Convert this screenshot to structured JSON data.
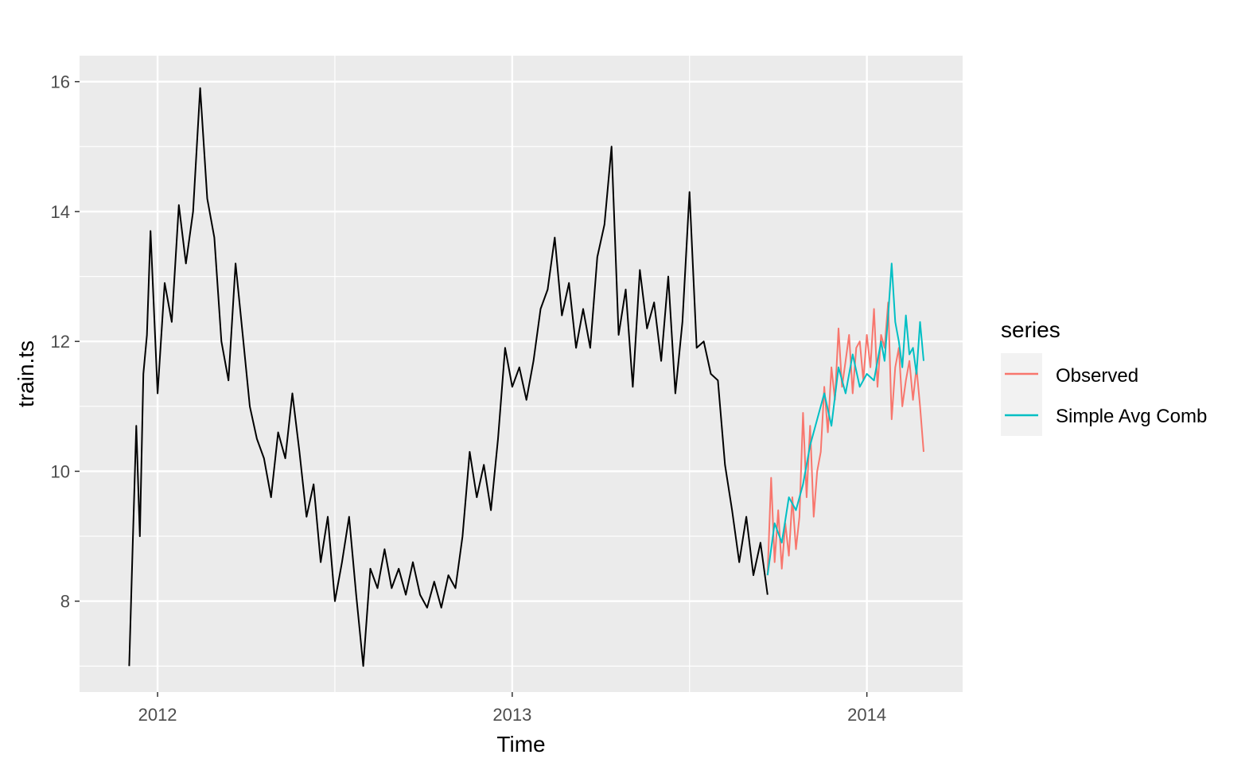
{
  "chart_data": {
    "type": "line",
    "xlabel": "Time",
    "ylabel": "train.ts",
    "xlim": [
      2011.78,
      2014.27
    ],
    "ylim": [
      6.6,
      16.4
    ],
    "x_ticks": [
      2012,
      2013,
      2014
    ],
    "x_tick_labels": [
      "2012",
      "2013",
      "2014"
    ],
    "y_ticks": [
      8,
      10,
      12,
      14,
      16
    ],
    "y_tick_labels": [
      "8",
      "10",
      "12",
      "14",
      "16"
    ],
    "grid": true,
    "legend": {
      "title": "series",
      "position": "right"
    },
    "series": [
      {
        "key": "train",
        "color": "#000000",
        "x": [
          2011.92,
          2011.93,
          2011.94,
          2011.95,
          2011.96,
          2011.97,
          2011.98,
          2012.0,
          2012.02,
          2012.04,
          2012.06,
          2012.08,
          2012.1,
          2012.12,
          2012.14,
          2012.16,
          2012.18,
          2012.2,
          2012.22,
          2012.24,
          2012.26,
          2012.28,
          2012.3,
          2012.32,
          2012.34,
          2012.36,
          2012.38,
          2012.4,
          2012.42,
          2012.44,
          2012.46,
          2012.48,
          2012.5,
          2012.52,
          2012.54,
          2012.56,
          2012.58,
          2012.6,
          2012.62,
          2012.64,
          2012.66,
          2012.68,
          2012.7,
          2012.72,
          2012.74,
          2012.76,
          2012.78,
          2012.8,
          2012.82,
          2012.84,
          2012.86,
          2012.88,
          2012.9,
          2012.92,
          2012.94,
          2012.96,
          2012.98,
          2013.0,
          2013.02,
          2013.04,
          2013.06,
          2013.08,
          2013.1,
          2013.12,
          2013.14,
          2013.16,
          2013.18,
          2013.2,
          2013.22,
          2013.24,
          2013.26,
          2013.28,
          2013.3,
          2013.32,
          2013.34,
          2013.36,
          2013.38,
          2013.4,
          2013.42,
          2013.44,
          2013.46,
          2013.48,
          2013.5,
          2013.52,
          2013.54,
          2013.56,
          2013.58,
          2013.6,
          2013.62,
          2013.64,
          2013.66,
          2013.68,
          2013.7,
          2013.72
        ],
        "values": [
          7.0,
          8.9,
          10.7,
          9.0,
          11.5,
          12.1,
          13.7,
          11.2,
          12.9,
          12.3,
          14.1,
          13.2,
          14.0,
          15.9,
          14.2,
          13.6,
          12.0,
          11.4,
          13.2,
          12.1,
          11.0,
          10.5,
          10.2,
          9.6,
          10.6,
          10.2,
          11.2,
          10.3,
          9.3,
          9.8,
          8.6,
          9.3,
          8.0,
          8.6,
          9.3,
          8.1,
          7.0,
          8.5,
          8.2,
          8.8,
          8.2,
          8.5,
          8.1,
          8.6,
          8.1,
          7.9,
          8.3,
          7.9,
          8.4,
          8.2,
          9.0,
          10.3,
          9.6,
          10.1,
          9.4,
          10.5,
          11.9,
          11.3,
          11.6,
          11.1,
          11.7,
          12.5,
          12.8,
          13.6,
          12.4,
          12.9,
          11.9,
          12.5,
          11.9,
          13.3,
          13.8,
          15.0,
          12.1,
          12.8,
          11.3,
          13.1,
          12.2,
          12.6,
          11.7,
          13.0,
          11.2,
          12.3,
          14.3,
          11.9,
          12.0,
          11.5,
          11.4,
          10.1,
          9.4,
          8.6,
          9.3,
          8.4,
          8.9,
          8.1
        ]
      },
      {
        "key": "observed",
        "name": "Observed",
        "color": "#F8766D",
        "x": [
          2013.72,
          2013.73,
          2013.74,
          2013.75,
          2013.76,
          2013.77,
          2013.78,
          2013.79,
          2013.8,
          2013.81,
          2013.82,
          2013.83,
          2013.84,
          2013.85,
          2013.86,
          2013.87,
          2013.88,
          2013.89,
          2013.9,
          2013.91,
          2013.92,
          2013.93,
          2013.94,
          2013.95,
          2013.96,
          2013.97,
          2013.98,
          2013.99,
          2014.0,
          2014.01,
          2014.02,
          2014.03,
          2014.04,
          2014.05,
          2014.06,
          2014.07,
          2014.08,
          2014.09,
          2014.1,
          2014.11,
          2014.12,
          2014.13,
          2014.14,
          2014.15,
          2014.16
        ],
        "values": [
          8.4,
          9.9,
          8.6,
          9.4,
          8.5,
          9.2,
          8.7,
          9.6,
          8.8,
          9.3,
          10.9,
          9.6,
          10.7,
          9.3,
          10.0,
          10.3,
          11.3,
          10.6,
          11.6,
          11.1,
          12.2,
          11.3,
          11.7,
          12.1,
          11.2,
          11.9,
          12.0,
          11.4,
          12.1,
          11.6,
          12.5,
          11.3,
          12.1,
          11.9,
          12.6,
          10.8,
          11.6,
          11.9,
          11.0,
          11.4,
          11.7,
          11.1,
          11.6,
          11.0,
          10.3
        ]
      },
      {
        "key": "simple_avg_comb",
        "name": "Simple Avg Comb",
        "color": "#00BFC4",
        "x": [
          2013.72,
          2013.74,
          2013.76,
          2013.78,
          2013.8,
          2013.82,
          2013.84,
          2013.86,
          2013.88,
          2013.9,
          2013.92,
          2013.94,
          2013.96,
          2013.98,
          2014.0,
          2014.02,
          2014.04,
          2014.05,
          2014.06,
          2014.07,
          2014.08,
          2014.09,
          2014.1,
          2014.11,
          2014.12,
          2014.13,
          2014.14,
          2014.15,
          2014.16
        ],
        "values": [
          8.4,
          9.2,
          8.9,
          9.6,
          9.4,
          9.8,
          10.4,
          10.8,
          11.2,
          10.7,
          11.6,
          11.2,
          11.8,
          11.3,
          11.5,
          11.4,
          12.0,
          11.7,
          12.4,
          13.2,
          12.3,
          12.0,
          11.6,
          12.4,
          11.8,
          11.9,
          11.5,
          12.3,
          11.7
        ]
      }
    ]
  }
}
